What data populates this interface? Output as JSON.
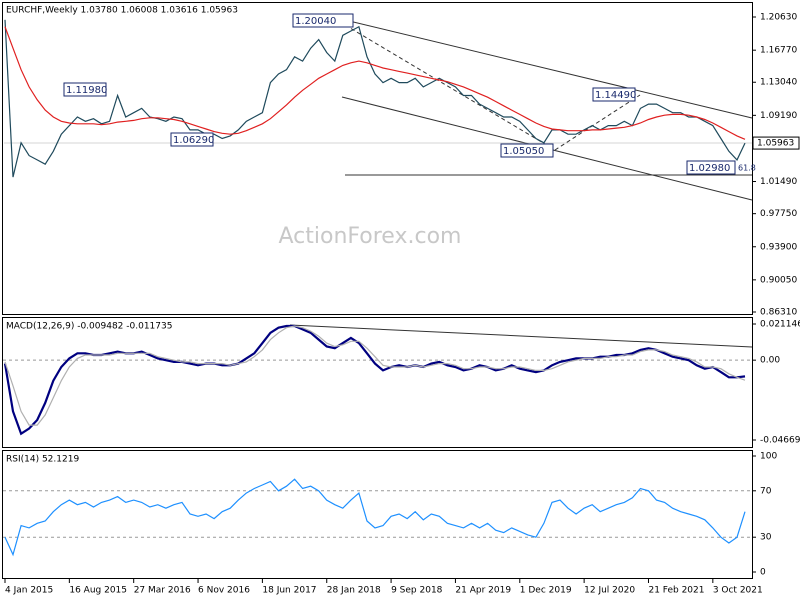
{
  "chart_data": [
    {
      "type": "line",
      "title": "EURCHF,Weekly  1.03780 1.06008 1.03616 1.05963",
      "categories": [
        "4 Jan 2015",
        null,
        null,
        null,
        null,
        null,
        null,
        null,
        "16 Aug 2015",
        null,
        null,
        null,
        null,
        null,
        null,
        null,
        "27 Mar 2016",
        null,
        null,
        null,
        null,
        null,
        null,
        null,
        "6 Nov 2016",
        null,
        null,
        null,
        null,
        null,
        null,
        null,
        "18 Jun 2017",
        null,
        null,
        null,
        null,
        null,
        null,
        null,
        "28 Jan 2018",
        null,
        null,
        null,
        null,
        null,
        null,
        null,
        "9 Sep 2018",
        null,
        null,
        null,
        null,
        null,
        null,
        null,
        "21 Apr 2019",
        null,
        null,
        null,
        null,
        null,
        null,
        null,
        "1 Dec 2019",
        null,
        null,
        null,
        null,
        null,
        null,
        null,
        "12 Jul 2020",
        null,
        null,
        null,
        null,
        null,
        null,
        null,
        "21 Feb 2021",
        null,
        null,
        null,
        null,
        null,
        null,
        null,
        "3 Oct 2021",
        null,
        null,
        null,
        null
      ],
      "series": [
        {
          "color": "#1f4a5c",
          "values": [
            1.203,
            1.02,
            1.06,
            1.045,
            1.04,
            1.035,
            1.05,
            1.07,
            1.08,
            1.09,
            1.085,
            1.088,
            1.082,
            1.085,
            1.115,
            1.09,
            1.095,
            1.1,
            1.09,
            1.088,
            1.085,
            1.09,
            1.088,
            1.075,
            1.075,
            1.07,
            1.07,
            1.065,
            1.068,
            1.075,
            1.085,
            1.09,
            1.095,
            1.13,
            1.14,
            1.145,
            1.16,
            1.155,
            1.17,
            1.18,
            1.165,
            1.155,
            1.185,
            1.19,
            1.195,
            1.16,
            1.14,
            1.13,
            1.135,
            1.13,
            1.13,
            1.135,
            1.125,
            1.13,
            1.135,
            1.13,
            1.125,
            1.115,
            1.115,
            1.105,
            1.1,
            1.095,
            1.09,
            1.09,
            1.085,
            1.075,
            1.065,
            1.06,
            1.075,
            1.075,
            1.07,
            1.07,
            1.075,
            1.08,
            1.075,
            1.08,
            1.08,
            1.085,
            1.08,
            1.1,
            1.105,
            1.105,
            1.1,
            1.095,
            1.095,
            1.09,
            1.09,
            1.085,
            1.08,
            1.065,
            1.05,
            1.04,
            1.0596
          ]
        },
        {
          "color": "#e02020",
          "values": [
            1.195,
            1.17,
            1.145,
            1.125,
            1.11,
            1.098,
            1.09,
            1.085,
            1.083,
            1.082,
            1.082,
            1.082,
            1.081,
            1.082,
            1.084,
            1.085,
            1.086,
            1.088,
            1.089,
            1.089,
            1.088,
            1.087,
            1.085,
            1.082,
            1.079,
            1.076,
            1.073,
            1.071,
            1.07,
            1.071,
            1.074,
            1.078,
            1.082,
            1.088,
            1.096,
            1.104,
            1.113,
            1.121,
            1.128,
            1.135,
            1.14,
            1.145,
            1.15,
            1.153,
            1.155,
            1.153,
            1.15,
            1.147,
            1.145,
            1.143,
            1.141,
            1.139,
            1.137,
            1.135,
            1.133,
            1.131,
            1.128,
            1.125,
            1.121,
            1.117,
            1.113,
            1.108,
            1.103,
            1.098,
            1.093,
            1.088,
            1.083,
            1.079,
            1.076,
            1.075,
            1.074,
            1.074,
            1.074,
            1.075,
            1.075,
            1.076,
            1.077,
            1.078,
            1.08,
            1.083,
            1.087,
            1.09,
            1.092,
            1.093,
            1.093,
            1.092,
            1.09,
            1.087,
            1.083,
            1.078,
            1.073,
            1.068,
            1.064
          ]
        }
      ],
      "ylim": [
        0.8631,
        1.2063
      ],
      "yticks": [
        {
          "value": 1.2063,
          "label": "1.20630"
        },
        {
          "value": 1.1677,
          "label": "1.16770"
        },
        {
          "value": 1.1304,
          "label": "1.13040"
        },
        {
          "value": 1.0919,
          "label": "1.09190"
        },
        {
          "value": 1.0149,
          "label": "1.01490"
        },
        {
          "value": 0.9775,
          "label": "0.97750"
        },
        {
          "value": 0.939,
          "label": "0.93900"
        },
        {
          "value": 0.9005,
          "label": "0.90050"
        },
        {
          "value": 0.8631,
          "label": "0.86310"
        }
      ],
      "price_marker": {
        "value": 1.05963,
        "label": "1.05963"
      },
      "annotations": [
        "1.20040",
        "1.11980",
        "1.06290",
        "1.05050",
        "1.14490",
        "1.02980",
        "61.8"
      ],
      "watermark": "ActionForex.com"
    },
    {
      "type": "line",
      "title": "MACD(12,26,9) -0.009482 -0.011735",
      "series": [
        {
          "color": "#000080",
          "values": [
            -0.002,
            -0.03,
            -0.043,
            -0.04,
            -0.035,
            -0.025,
            -0.012,
            -0.004,
            0.001,
            0.004,
            0.004,
            0.003,
            0.003,
            0.004,
            0.005,
            0.004,
            0.004,
            0.005,
            0.003,
            0.001,
            0.0,
            -0.001,
            -0.001,
            -0.002,
            -0.003,
            -0.002,
            -0.002,
            -0.003,
            -0.003,
            -0.002,
            0.001,
            0.004,
            0.01,
            0.016,
            0.019,
            0.02,
            0.02,
            0.018,
            0.016,
            0.012,
            0.008,
            0.007,
            0.01,
            0.013,
            0.01,
            0.004,
            -0.002,
            -0.006,
            -0.004,
            -0.003,
            -0.004,
            -0.003,
            -0.004,
            -0.002,
            -0.001,
            -0.003,
            -0.004,
            -0.006,
            -0.005,
            -0.003,
            -0.004,
            -0.006,
            -0.005,
            -0.003,
            -0.005,
            -0.006,
            -0.007,
            -0.006,
            -0.003,
            -0.001,
            0.0,
            0.001,
            0.001,
            0.001,
            0.002,
            0.002,
            0.003,
            0.003,
            0.004,
            0.006,
            0.007,
            0.006,
            0.004,
            0.002,
            0.001,
            0.0,
            -0.003,
            -0.005,
            -0.004,
            -0.007,
            -0.01,
            -0.01,
            -0.0095
          ]
        },
        {
          "color": "#b0b0b0",
          "values": [
            -0.001,
            -0.015,
            -0.03,
            -0.038,
            -0.038,
            -0.032,
            -0.022,
            -0.012,
            -0.004,
            0.001,
            0.003,
            0.003,
            0.003,
            0.003,
            0.004,
            0.004,
            0.004,
            0.004,
            0.004,
            0.002,
            0.001,
            0.0,
            -0.001,
            -0.001,
            -0.002,
            -0.002,
            -0.002,
            -0.002,
            -0.003,
            -0.002,
            -0.001,
            0.002,
            0.006,
            0.012,
            0.016,
            0.019,
            0.02,
            0.019,
            0.017,
            0.014,
            0.01,
            0.008,
            0.009,
            0.011,
            0.011,
            0.007,
            0.002,
            -0.003,
            -0.004,
            -0.004,
            -0.004,
            -0.003,
            -0.004,
            -0.003,
            -0.002,
            -0.002,
            -0.003,
            -0.005,
            -0.005,
            -0.004,
            -0.004,
            -0.005,
            -0.005,
            -0.004,
            -0.004,
            -0.005,
            -0.006,
            -0.006,
            -0.005,
            -0.003,
            -0.001,
            0.0,
            0.001,
            0.001,
            0.001,
            0.002,
            0.002,
            0.003,
            0.003,
            0.005,
            0.006,
            0.006,
            0.005,
            0.003,
            0.002,
            0.001,
            -0.001,
            -0.004,
            -0.004,
            -0.005,
            -0.008,
            -0.01,
            -0.0117
          ]
        }
      ],
      "ylim": [
        -0.046699,
        0.021146
      ],
      "yticks": [
        0.021146,
        {
          "value": 0,
          "label": "0.00"
        },
        -0.046699
      ],
      "trendline": true
    },
    {
      "type": "line",
      "title": "RSI(14) 52.1219",
      "series": [
        {
          "color": "#1e90ff",
          "values": [
            30,
            15,
            40,
            38,
            42,
            44,
            52,
            58,
            62,
            58,
            60,
            56,
            60,
            62,
            65,
            60,
            62,
            60,
            56,
            58,
            55,
            58,
            60,
            50,
            48,
            50,
            46,
            52,
            55,
            62,
            68,
            72,
            75,
            78,
            70,
            74,
            80,
            72,
            74,
            70,
            62,
            58,
            55,
            62,
            68,
            44,
            38,
            40,
            48,
            50,
            46,
            52,
            45,
            50,
            48,
            42,
            40,
            38,
            42,
            38,
            42,
            36,
            34,
            38,
            35,
            32,
            30,
            42,
            60,
            62,
            55,
            50,
            55,
            58,
            52,
            55,
            58,
            60,
            64,
            72,
            70,
            62,
            60,
            55,
            52,
            50,
            48,
            45,
            38,
            30,
            25,
            30,
            52
          ]
        }
      ],
      "ylim": [
        0,
        100
      ],
      "yticks": [
        100,
        70,
        30,
        0
      ]
    }
  ]
}
